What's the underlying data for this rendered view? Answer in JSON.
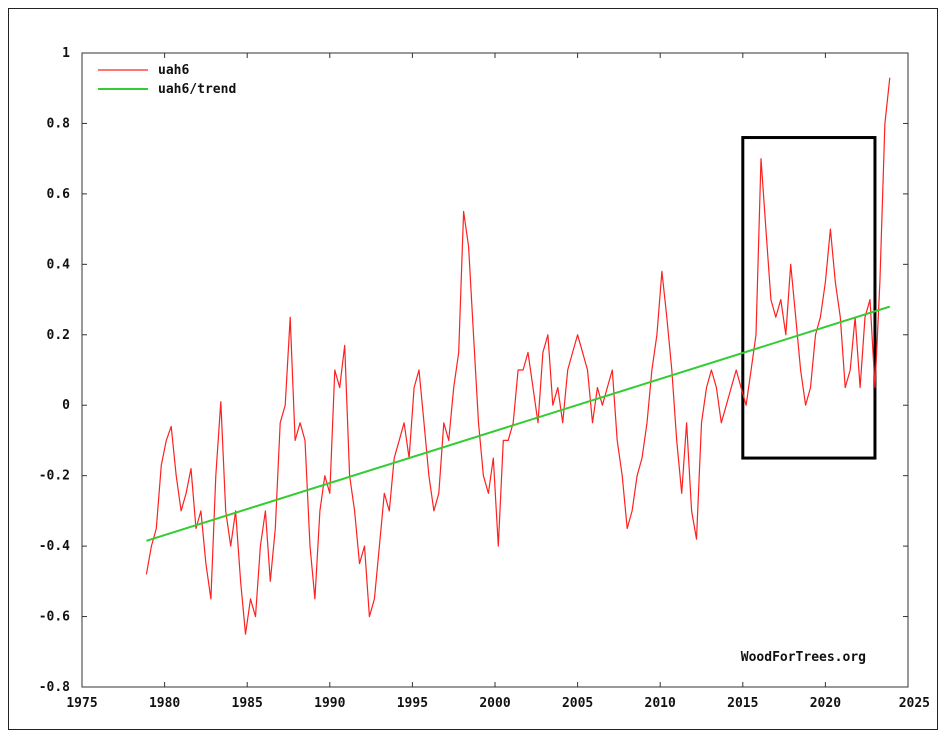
{
  "chart_data": {
    "type": "line",
    "title": "",
    "xlabel": "",
    "ylabel": "",
    "xlim": [
      1975,
      2025
    ],
    "ylim": [
      -0.8,
      1.0
    ],
    "x_ticks": [
      1975,
      1980,
      1985,
      1990,
      1995,
      2000,
      2005,
      2010,
      2015,
      2020,
      2025
    ],
    "x_tick_labels": [
      "1975",
      "1980",
      "1985",
      "1990",
      "1995",
      "2000",
      "2005",
      "2010",
      "2015",
      "2020",
      "2025"
    ],
    "y_ticks": [
      1.0,
      0.8,
      0.6,
      0.4,
      0.2,
      0.0,
      -0.2,
      -0.4,
      -0.6,
      -0.8
    ],
    "y_tick_labels": [
      "1",
      "0.8",
      "0.6",
      "0.4",
      "0.2",
      "0",
      "-0.2",
      "-0.4",
      "-0.6",
      "-0.8"
    ],
    "grid": false,
    "legend_position": "top-left",
    "annotation_text": "WoodForTrees.org",
    "highlight_box": {
      "x_range": [
        2015.0,
        2023.0
      ],
      "y_range": [
        -0.15,
        0.76
      ]
    },
    "series": [
      {
        "name": "uah6",
        "color": "#ff2020",
        "x": [
          1978.9,
          1979.2,
          1979.5,
          1979.8,
          1980.1,
          1980.4,
          1980.7,
          1981.0,
          1981.3,
          1981.6,
          1981.9,
          1982.2,
          1982.5,
          1982.8,
          1983.1,
          1983.4,
          1983.7,
          1984.0,
          1984.3,
          1984.6,
          1984.9,
          1985.2,
          1985.5,
          1985.8,
          1986.1,
          1986.4,
          1986.7,
          1987.0,
          1987.3,
          1987.6,
          1987.9,
          1988.2,
          1988.5,
          1988.8,
          1989.1,
          1989.4,
          1989.7,
          1990.0,
          1990.3,
          1990.6,
          1990.9,
          1991.2,
          1991.5,
          1991.8,
          1992.1,
          1992.4,
          1992.7,
          1993.0,
          1993.3,
          1993.6,
          1993.9,
          1994.2,
          1994.5,
          1994.8,
          1995.1,
          1995.4,
          1995.7,
          1996.0,
          1996.3,
          1996.6,
          1996.9,
          1997.2,
          1997.5,
          1997.8,
          1998.1,
          1998.4,
          1998.7,
          1999.0,
          1999.3,
          1999.6,
          1999.9,
          2000.2,
          2000.5,
          2000.8,
          2001.1,
          2001.4,
          2001.7,
          2002.0,
          2002.3,
          2002.6,
          2002.9,
          2003.2,
          2003.5,
          2003.8,
          2004.1,
          2004.4,
          2004.7,
          2005.0,
          2005.3,
          2005.6,
          2005.9,
          2006.2,
          2006.5,
          2006.8,
          2007.1,
          2007.4,
          2007.7,
          2008.0,
          2008.3,
          2008.6,
          2008.9,
          2009.2,
          2009.5,
          2009.8,
          2010.1,
          2010.4,
          2010.7,
          2011.0,
          2011.3,
          2011.6,
          2011.9,
          2012.2,
          2012.5,
          2012.8,
          2013.1,
          2013.4,
          2013.7,
          2014.0,
          2014.3,
          2014.6,
          2014.9,
          2015.2,
          2015.5,
          2015.8,
          2016.1,
          2016.4,
          2016.7,
          2017.0,
          2017.3,
          2017.6,
          2017.9,
          2018.2,
          2018.5,
          2018.8,
          2019.1,
          2019.4,
          2019.7,
          2020.0,
          2020.3,
          2020.6,
          2020.9,
          2021.2,
          2021.5,
          2021.8,
          2022.1,
          2022.4,
          2022.7,
          2023.0,
          2023.3,
          2023.6,
          2023.9
        ],
        "values": [
          -0.48,
          -0.4,
          -0.35,
          -0.17,
          -0.1,
          -0.06,
          -0.2,
          -0.3,
          -0.25,
          -0.18,
          -0.35,
          -0.3,
          -0.45,
          -0.55,
          -0.2,
          0.01,
          -0.3,
          -0.4,
          -0.3,
          -0.5,
          -0.65,
          -0.55,
          -0.6,
          -0.4,
          -0.3,
          -0.5,
          -0.35,
          -0.05,
          0.0,
          0.25,
          -0.1,
          -0.05,
          -0.1,
          -0.4,
          -0.55,
          -0.3,
          -0.2,
          -0.25,
          0.1,
          0.05,
          0.17,
          -0.2,
          -0.3,
          -0.45,
          -0.4,
          -0.6,
          -0.55,
          -0.4,
          -0.25,
          -0.3,
          -0.15,
          -0.1,
          -0.05,
          -0.15,
          0.05,
          0.1,
          -0.05,
          -0.2,
          -0.3,
          -0.25,
          -0.05,
          -0.1,
          0.05,
          0.15,
          0.55,
          0.45,
          0.2,
          -0.05,
          -0.2,
          -0.25,
          -0.15,
          -0.4,
          -0.1,
          -0.1,
          -0.05,
          0.1,
          0.1,
          0.15,
          0.05,
          -0.05,
          0.15,
          0.2,
          0.0,
          0.05,
          -0.05,
          0.1,
          0.15,
          0.2,
          0.15,
          0.1,
          -0.05,
          0.05,
          0.0,
          0.05,
          0.1,
          -0.1,
          -0.2,
          -0.35,
          -0.3,
          -0.2,
          -0.15,
          -0.05,
          0.1,
          0.2,
          0.38,
          0.25,
          0.1,
          -0.1,
          -0.25,
          -0.05,
          -0.3,
          -0.38,
          -0.05,
          0.05,
          0.1,
          0.05,
          -0.05,
          0.0,
          0.05,
          0.1,
          0.05,
          0.0,
          0.1,
          0.2,
          0.7,
          0.5,
          0.3,
          0.25,
          0.3,
          0.2,
          0.4,
          0.25,
          0.1,
          0.0,
          0.05,
          0.2,
          0.25,
          0.35,
          0.5,
          0.35,
          0.25,
          0.05,
          0.1,
          0.25,
          0.05,
          0.25,
          0.3,
          0.05,
          0.35,
          0.8,
          0.93
        ],
        "note_last_visible": true
      },
      {
        "name": "uah6/trend",
        "color": "#33cc33",
        "x": [
          1978.9,
          2023.9
        ],
        "values": [
          -0.385,
          0.28
        ]
      }
    ]
  }
}
